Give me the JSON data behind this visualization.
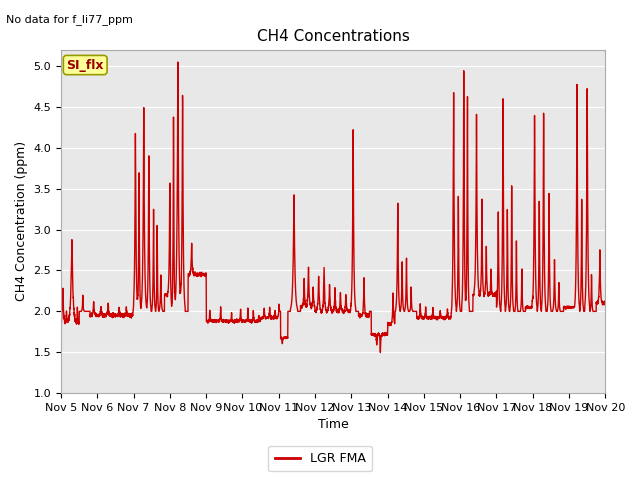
{
  "title": "CH4 Concentrations",
  "top_left_text": "No data for f_li77_ppm",
  "xlabel": "Time",
  "ylabel": "CH4 Concentration (ppm)",
  "ylim": [
    1.0,
    5.2
  ],
  "yticks": [
    1.0,
    1.5,
    2.0,
    2.5,
    3.0,
    3.5,
    4.0,
    4.5,
    5.0
  ],
  "xtick_labels": [
    "Nov 5",
    "Nov 6",
    "Nov 7",
    "Nov 8",
    "Nov 9",
    "Nov 10",
    "Nov 11",
    "Nov 12",
    "Nov 13",
    "Nov 14",
    "Nov 15",
    "Nov 16",
    "Nov 17",
    "Nov 18",
    "Nov 19",
    "Nov 20"
  ],
  "line_color": "#cc0000",
  "line_width": 1.0,
  "legend_label": "LGR FMA",
  "legend_line_color": "#cc0000",
  "fig_facecolor": "#ffffff",
  "plot_bg_color": "#e8e8e8",
  "grid_color": "#ffffff",
  "annotation_box_text": "SI_flx",
  "annotation_box_facecolor": "#ffff99",
  "annotation_box_edgecolor": "#999900",
  "annotation_box_textcolor": "#990000",
  "title_fontsize": 11,
  "axis_label_fontsize": 9,
  "tick_fontsize": 8
}
